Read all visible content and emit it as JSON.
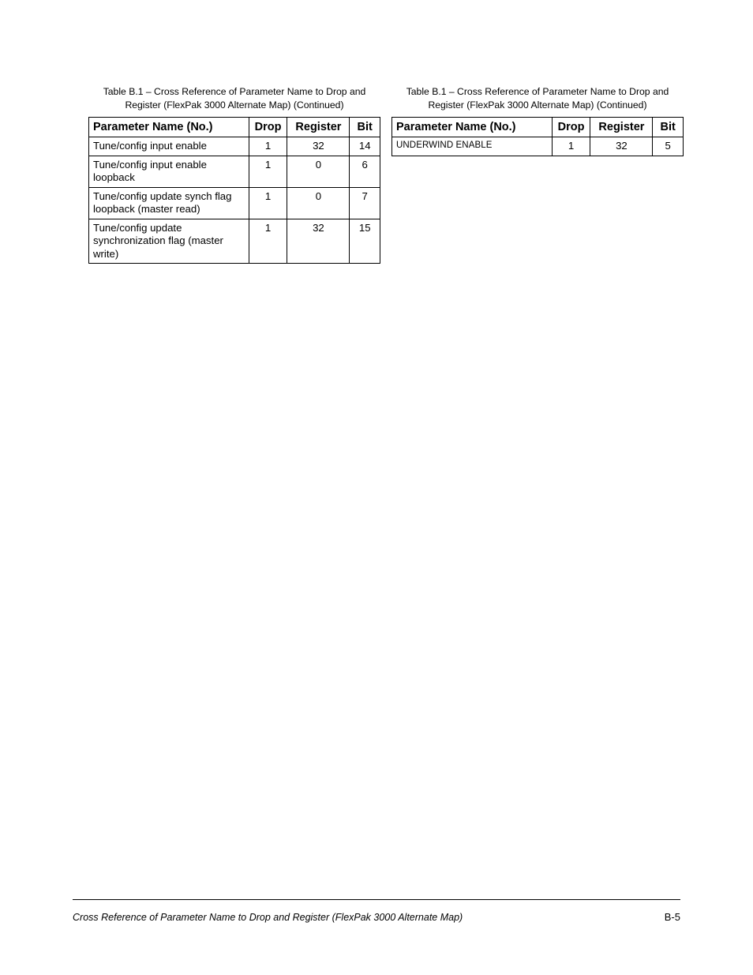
{
  "caption": {
    "line1": "Table B.1 – Cross Reference of Parameter Name to Drop and",
    "line2": "Register (FlexPak 3000 Alternate Map) (Continued)"
  },
  "headers": {
    "param": "Parameter Name (No.)",
    "drop": "Drop",
    "register": "Register",
    "bit": "Bit"
  },
  "leftTable": {
    "rows": [
      {
        "param": "Tune/config input enable",
        "drop": "1",
        "register": "32",
        "bit": "14",
        "small": false
      },
      {
        "param": "Tune/config input enable loopback",
        "drop": "1",
        "register": "0",
        "bit": "6",
        "small": false
      },
      {
        "param": "Tune/config update synch flag loopback (master read)",
        "drop": "1",
        "register": "0",
        "bit": "7",
        "small": false
      },
      {
        "param": "Tune/config update synchronization flag (master write)",
        "drop": "1",
        "register": "32",
        "bit": "15",
        "small": false
      }
    ]
  },
  "rightTable": {
    "rows": [
      {
        "param": "UNDERWIND ENABLE",
        "drop": "1",
        "register": "32",
        "bit": "5",
        "small": true
      }
    ]
  },
  "footer": {
    "left": "Cross Reference of Parameter Name to Drop and Register (FlexPak 3000 Alternate Map)",
    "right": "B-5"
  },
  "style": {
    "page_bg": "#ffffff",
    "text_color": "#000000",
    "border_color": "#000000",
    "caption_fontsize": 12.2,
    "header_fontsize": 14.5,
    "cell_fontsize": 13.2,
    "small_cell_fontsize": 11.5,
    "footer_left_fontsize": 12.5,
    "footer_right_fontsize": 13,
    "col_widths": {
      "param": 200,
      "drop": 48,
      "register": 78,
      "bit": 38
    }
  }
}
